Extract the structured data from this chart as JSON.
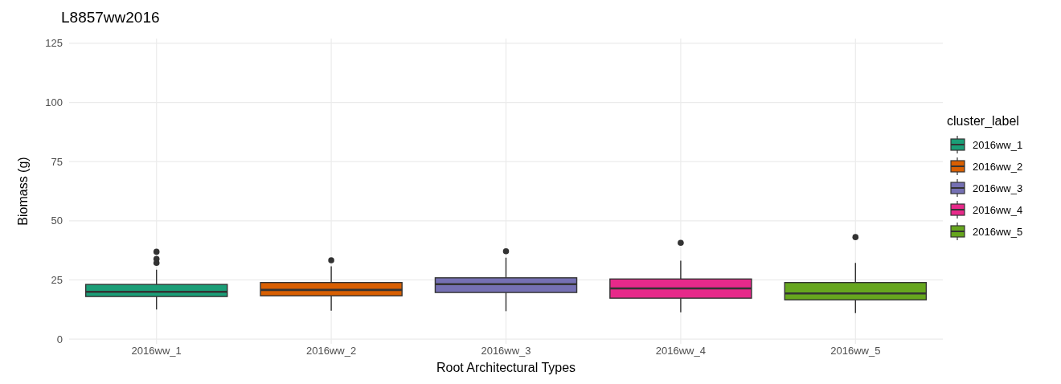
{
  "chart_data": {
    "type": "box",
    "title": "L8857ww2016",
    "xlabel": "Root Architectural Types",
    "ylabel": "Biomass (g)",
    "legend_title": "cluster_label",
    "categories": [
      "2016ww_1",
      "2016ww_2",
      "2016ww_3",
      "2016ww_4",
      "2016ww_5"
    ],
    "series": [
      {
        "name": "2016ww_1",
        "color": "#1b9e77",
        "boxes": [
          {
            "low": 12.5,
            "q1": 18.0,
            "median": 20.0,
            "q3": 23.1,
            "high": 29.3,
            "outliers": [
              32.2,
              33.9,
              36.9
            ]
          },
          null,
          null,
          null,
          null
        ]
      },
      {
        "name": "2016ww_2",
        "color": "#d95f02",
        "boxes": [
          null,
          {
            "low": 12.0,
            "q1": 18.3,
            "median": 20.8,
            "q3": 23.9,
            "high": 30.8,
            "outliers": [
              33.3
            ]
          },
          null,
          null,
          null
        ]
      },
      {
        "name": "2016ww_3",
        "color": "#7570b3",
        "boxes": [
          null,
          null,
          {
            "low": 11.8,
            "q1": 19.7,
            "median": 23.2,
            "q3": 25.9,
            "high": 34.4,
            "outliers": [
              37.1
            ]
          },
          null,
          null
        ]
      },
      {
        "name": "2016ww_4",
        "color": "#e7298a",
        "boxes": [
          null,
          null,
          null,
          {
            "low": 11.3,
            "q1": 17.3,
            "median": 21.4,
            "q3": 25.4,
            "high": 33.1,
            "outliers": [
              40.7
            ]
          },
          null
        ]
      },
      {
        "name": "2016ww_5",
        "color": "#66a61e",
        "boxes": [
          null,
          null,
          null,
          null,
          {
            "low": 11.0,
            "q1": 16.6,
            "median": 19.3,
            "q3": 23.9,
            "high": 32.2,
            "outliers": [
              43.1
            ]
          }
        ]
      }
    ],
    "ylim": [
      -2,
      127
    ],
    "yticks": [
      0,
      25,
      50,
      75,
      100,
      125
    ],
    "grid": true,
    "legend": "right"
  }
}
